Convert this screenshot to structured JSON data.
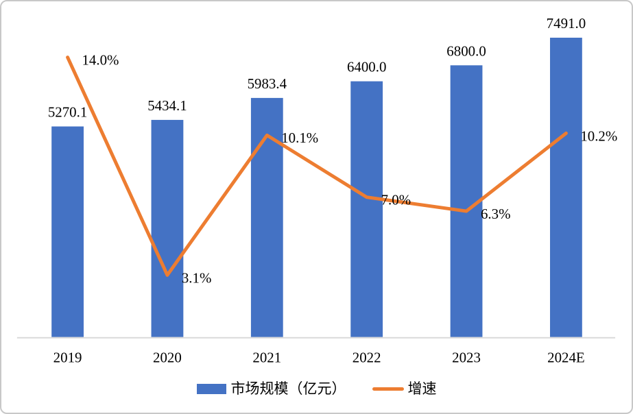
{
  "frame": {
    "border_color": "#c8c8c8",
    "background": "#ffffff"
  },
  "chart_data": {
    "type": "bar",
    "subtype": "combo-bar-line",
    "title": "",
    "xlabel": "",
    "ylabel": "",
    "categories": [
      "2019",
      "2020",
      "2021",
      "2022",
      "2023",
      "2024E"
    ],
    "series": [
      {
        "name": "市场规模（亿元）",
        "type": "bar",
        "color": "#4472C4",
        "axis": "left",
        "values": [
          5270.1,
          5434.1,
          5983.4,
          6400.0,
          6800.0,
          7491.0
        ],
        "labels": [
          "5270.1",
          "5434.1",
          "5983.4",
          "6400.0",
          "6800.0",
          "7491.0"
        ]
      },
      {
        "name": "增速",
        "type": "line",
        "color": "#ED7D31",
        "axis": "right",
        "values": [
          14.0,
          3.1,
          10.1,
          7.0,
          6.3,
          10.2
        ],
        "labels": [
          "14.0%",
          "3.1%",
          "10.1%",
          "7.0%",
          "6.3%",
          "10.2%"
        ]
      }
    ],
    "left_axis": {
      "min": 0,
      "max": 8400,
      "visible": false
    },
    "right_axis": {
      "min": 0,
      "max": 16.8,
      "unit": "%",
      "visible": false
    },
    "grid": false,
    "legend_position": "bottom",
    "axis_line_color": "#D9D9D9",
    "label_color": "#000000"
  },
  "legend": {
    "items": [
      {
        "label": "市场规模（亿元）",
        "swatch": "bar",
        "color": "#4472C4"
      },
      {
        "label": "增速",
        "swatch": "line",
        "color": "#ED7D31"
      }
    ]
  }
}
